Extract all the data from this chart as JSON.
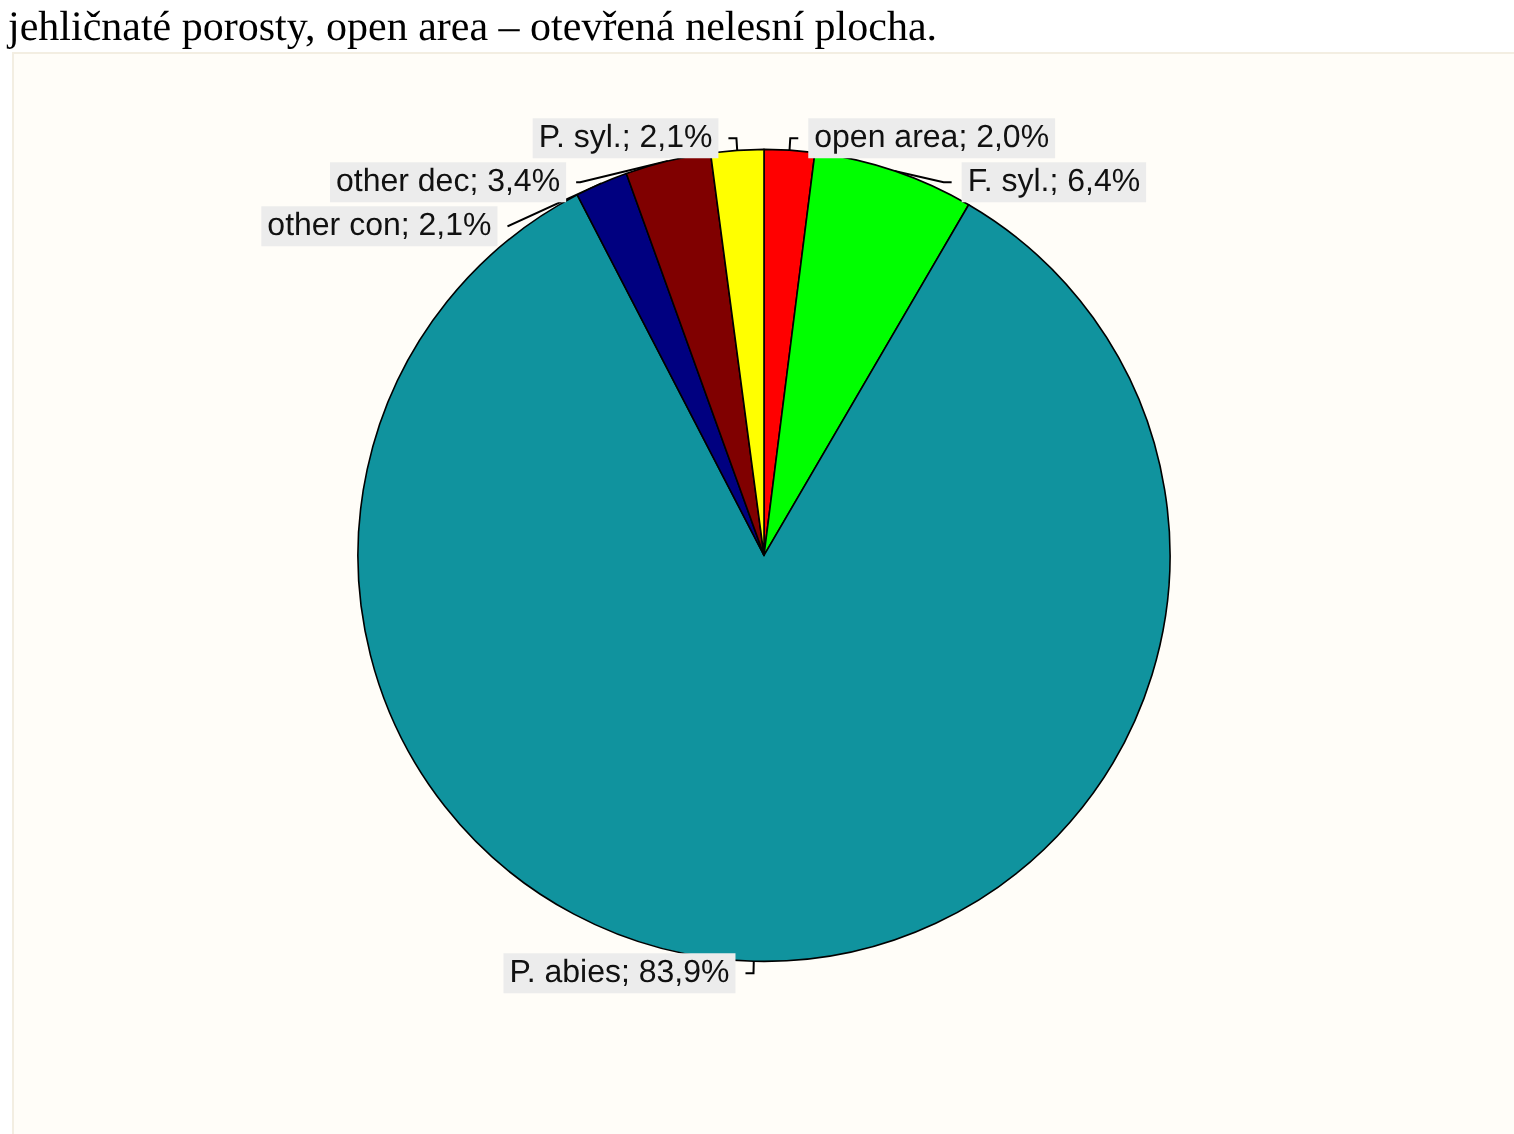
{
  "chart_data": {
    "type": "pie",
    "annotations": [
      "jehličnaté porosty, open area – otevřená nelesní plocha."
    ],
    "categories": [
      "open area",
      "F. syl.",
      "P. abies",
      "other con",
      "other dec",
      "P. syl."
    ],
    "values": [
      2.0,
      6.4,
      83.9,
      2.1,
      3.4,
      2.1
    ],
    "value_labels": [
      "2,0%",
      "6,4%",
      "83,9%",
      "2,1%",
      "3,4%",
      "2,1%"
    ],
    "colors": [
      "#ff0000",
      "#00ff00",
      "#10939e",
      "#000080",
      "#800000",
      "#ffff00"
    ],
    "legend": false
  }
}
